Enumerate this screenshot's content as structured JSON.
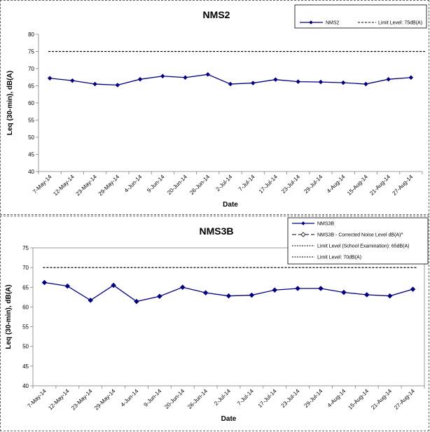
{
  "chart_data": [
    {
      "type": "line",
      "title": "NMS2",
      "xlabel": "Date",
      "ylabel": "Leq (30-min), dB(A)",
      "ylim": [
        40,
        80
      ],
      "yticks": [
        40,
        45,
        50,
        55,
        60,
        65,
        70,
        75,
        80
      ],
      "categories": [
        "7-May-14",
        "12-May-14",
        "23-May-14",
        "29-May-14",
        "4-Jun-14",
        "9-Jun-14",
        "20-Jun-14",
        "26-Jun-14",
        "2-Jul-14",
        "7-Jul-14",
        "17-Jul-14",
        "23-Jul-14",
        "29-Jul-14",
        "4-Aug-14",
        "15-Aug-14",
        "21-Aug-14",
        "27-Aug-14"
      ],
      "series": [
        {
          "name": "NMS2",
          "values": [
            67.2,
            66.5,
            65.5,
            65.2,
            66.9,
            67.8,
            67.4,
            68.3,
            65.5,
            65.8,
            66.8,
            66.2,
            66.1,
            65.9,
            65.5,
            66.9,
            67.4
          ],
          "color": "#000080",
          "marker": "diamond"
        }
      ],
      "limit_lines": [
        {
          "name": "Limit Level: 75dB(A)",
          "value": 75
        }
      ],
      "grid": false,
      "legend_position": "top-right"
    },
    {
      "type": "line",
      "title": "NMS3B",
      "xlabel": "Date",
      "ylabel": "Leq (30-min), dB(A)",
      "ylim": [
        40,
        75
      ],
      "yticks": [
        40,
        45,
        50,
        55,
        60,
        65,
        70,
        75
      ],
      "categories": [
        "7-May-14",
        "12-May-14",
        "23-May-14",
        "29-May-14",
        "4-Jun-14",
        "9-Jun-14",
        "20-Jun-14",
        "26-Jun-14",
        "2-Jul-14",
        "7-Jul-14",
        "17-Jul-14",
        "23-Jul-14",
        "29-Jul-14",
        "4-Aug-14",
        "15-Aug-14",
        "21-Aug-14",
        "27-Aug-14"
      ],
      "series": [
        {
          "name": "NMS3B",
          "values": [
            66.2,
            65.3,
            61.7,
            65.5,
            61.4,
            62.7,
            65.0,
            63.6,
            62.8,
            63.0,
            64.3,
            64.7,
            64.7,
            63.7,
            63.1,
            62.8,
            64.5
          ],
          "color": "#000080",
          "marker": "diamond"
        }
      ],
      "extra_legend": [
        {
          "name": "NMS3B - Corrected Noise Level dB(A)^",
          "style": "dash-diamond"
        },
        {
          "name": "Limit Level (School Examination): 65dB(A)",
          "style": "dotted"
        },
        {
          "name": "Limit Level: 70dB(A)",
          "style": "dotted"
        }
      ],
      "limit_lines": [
        {
          "name": "Limit Level: 70dB(A)",
          "value": 70
        }
      ],
      "grid": false,
      "legend_position": "top-right"
    }
  ]
}
